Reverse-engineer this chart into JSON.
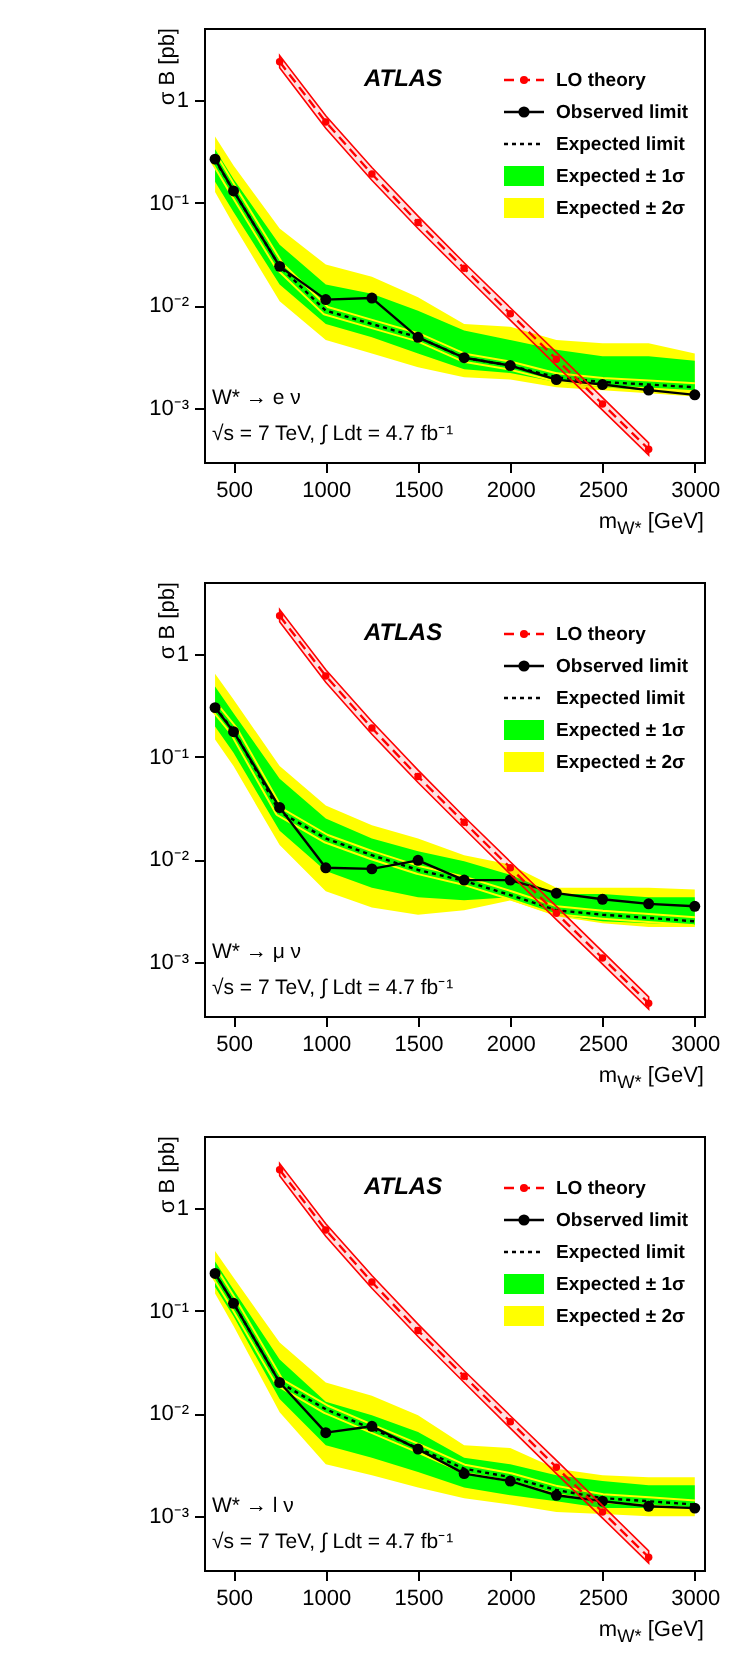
{
  "chart_data": [
    {
      "type": "line",
      "xlabel": "m$_{W*}$ [GeV]",
      "ylabel": "σ B [pb]",
      "log": "y",
      "legend": "top right",
      "grid": false,
      "annotations": [
        "ATLAS",
        "W* → e ν",
        "√s = 7 TeV, ∫ Ldt = 4.7 fb⁻¹"
      ],
      "xlim": [
        340,
        3050
      ],
      "xticks": [
        500,
        1000,
        1500,
        2000,
        2500,
        3000
      ],
      "ylim": [
        0.0003,
        5
      ],
      "yticks": [
        {
          "value": 0.001,
          "label": "10⁻³"
        },
        {
          "value": 0.01,
          "label": "10⁻²"
        },
        {
          "value": 0.1,
          "label": "10⁻¹"
        },
        {
          "value": 1,
          "label": "1"
        }
      ],
      "x": [
        400,
        500,
        750,
        1000,
        1250,
        1500,
        1750,
        2000,
        2250,
        2500,
        2750,
        3000
      ],
      "series": [
        {
          "name": "LO theory",
          "type": "line",
          "color": "#ff0000",
          "line_style": "dashed",
          "marker": "circle",
          "x": [
            750,
            1000,
            1250,
            1500,
            1750,
            2000,
            2250,
            2500,
            2750
          ],
          "values": [
            2.35,
            0.61,
            0.19,
            0.064,
            0.023,
            0.0083,
            0.003,
            0.0011,
            0.0004
          ],
          "lower": [
            2.05,
            0.53,
            0.165,
            0.056,
            0.02,
            0.0072,
            0.0026,
            0.00096,
            0.00035
          ],
          "upper": [
            2.7,
            0.7,
            0.22,
            0.074,
            0.026,
            0.0095,
            0.0035,
            0.00127,
            0.00046
          ]
        },
        {
          "name": "Observed limit",
          "type": "line",
          "color": "#000000",
          "line_style": "solid",
          "marker": "circle",
          "values": [
            0.265,
            0.13,
            0.024,
            0.0114,
            0.0118,
            0.0049,
            0.0031,
            0.0026,
            0.0019,
            0.0017,
            0.0015,
            0.00135
          ]
        },
        {
          "name": "Expected  limit",
          "type": "line",
          "color": "#000000",
          "line_style": "dotted",
          "marker": "none",
          "values": [
            0.26,
            0.13,
            0.024,
            0.0089,
            0.0066,
            0.0049,
            0.0031,
            0.0026,
            0.002,
            0.0018,
            0.0017,
            0.0016
          ]
        },
        {
          "name": "Expected ± 1σ",
          "type": "line",
          "color": "#00ff00",
          "line_style": "solid",
          "marker": "none",
          "values": [
            0.26,
            0.13,
            0.024,
            0.0089,
            0.0066,
            0.0049,
            0.0031,
            0.0026,
            0.002,
            0.0018,
            0.0017,
            0.0016
          ],
          "lower": [
            0.16,
            0.081,
            0.016,
            0.0066,
            0.0049,
            0.0034,
            0.0024,
            0.0022,
            0.0018,
            0.0016,
            0.0015,
            0.0015
          ],
          "upper": [
            0.33,
            0.17,
            0.039,
            0.016,
            0.013,
            0.0089,
            0.0057,
            0.0046,
            0.0037,
            0.0032,
            0.0032,
            0.0029
          ]
        },
        {
          "name": "Expected ± 2σ",
          "type": "line",
          "color": "#ffff00",
          "line_style": "solid",
          "marker": "none",
          "values": [
            0.26,
            0.13,
            0.024,
            0.0089,
            0.0066,
            0.0049,
            0.0031,
            0.0026,
            0.002,
            0.0018,
            0.0017,
            0.0016
          ],
          "lower": [
            0.127,
            0.061,
            0.011,
            0.0046,
            0.0034,
            0.0025,
            0.002,
            0.0019,
            0.0016,
            0.0015,
            0.0014,
            0.0013
          ],
          "upper": [
            0.44,
            0.23,
            0.056,
            0.025,
            0.019,
            0.012,
            0.0066,
            0.0062,
            0.0046,
            0.0043,
            0.0043,
            0.0034
          ]
        }
      ]
    },
    {
      "type": "line",
      "xlabel": "m$_{W*}$ [GeV]",
      "ylabel": "σ B [pb]",
      "log": "y",
      "legend": "top right",
      "grid": false,
      "annotations": [
        "ATLAS",
        "W* → μ ν",
        "√s = 7 TeV, ∫ Ldt = 4.7 fb⁻¹"
      ],
      "xlim": [
        340,
        3050
      ],
      "xticks": [
        500,
        1000,
        1500,
        2000,
        2500,
        3000
      ],
      "ylim": [
        0.0003,
        5
      ],
      "yticks": [
        {
          "value": 0.001,
          "label": "10⁻³"
        },
        {
          "value": 0.01,
          "label": "10⁻²"
        },
        {
          "value": 0.1,
          "label": "10⁻¹"
        },
        1
      ],
      "x": [
        400,
        500,
        750,
        1000,
        1250,
        1500,
        1750,
        2000,
        2250,
        2500,
        2750,
        3000
      ],
      "series": [
        {
          "name": "LO theory",
          "type": "line",
          "color": "#ff0000",
          "line_style": "dashed",
          "marker": "circle",
          "x": [
            750,
            1000,
            1250,
            1500,
            1750,
            2000,
            2250,
            2500,
            2750
          ],
          "values": [
            2.35,
            0.61,
            0.19,
            0.064,
            0.023,
            0.0083,
            0.003,
            0.0011,
            0.0004
          ],
          "lower": [
            2.05,
            0.53,
            0.165,
            0.056,
            0.02,
            0.0072,
            0.0026,
            0.00096,
            0.00035
          ],
          "upper": [
            2.7,
            0.7,
            0.22,
            0.074,
            0.026,
            0.0095,
            0.0035,
            0.00127,
            0.00046
          ]
        },
        {
          "name": "Observed limit",
          "type": "line",
          "color": "#000000",
          "line_style": "solid",
          "marker": "circle",
          "values": [
            0.3,
            0.175,
            0.032,
            0.0083,
            0.0081,
            0.0098,
            0.0063,
            0.0063,
            0.0047,
            0.0041,
            0.0037,
            0.0035
          ]
        },
        {
          "name": "Expected  limit",
          "type": "line",
          "color": "#000000",
          "line_style": "dotted",
          "marker": "none",
          "values": [
            0.3,
            0.18,
            0.029,
            0.016,
            0.011,
            0.0079,
            0.0062,
            0.0045,
            0.0032,
            0.0029,
            0.0027,
            0.0025
          ]
        },
        {
          "name": "Expected ± 1σ",
          "type": "line",
          "color": "#00ff00",
          "line_style": "solid",
          "marker": "none",
          "values": [
            0.3,
            0.18,
            0.029,
            0.016,
            0.011,
            0.0079,
            0.0062,
            0.0045,
            0.0032,
            0.0029,
            0.0027,
            0.0025
          ],
          "lower": [
            0.197,
            0.109,
            0.019,
            0.0077,
            0.0053,
            0.0043,
            0.004,
            0.0043,
            0.0029,
            0.0025,
            0.0024,
            0.0023
          ],
          "upper": [
            0.48,
            0.265,
            0.061,
            0.025,
            0.016,
            0.012,
            0.0096,
            0.0071,
            0.0046,
            0.0046,
            0.0043,
            0.0043
          ]
        },
        {
          "name": "Expected ± 2σ",
          "type": "line",
          "color": "#ffff00",
          "line_style": "solid",
          "marker": "none",
          "values": [
            0.3,
            0.18,
            0.029,
            0.016,
            0.011,
            0.0079,
            0.0062,
            0.0045,
            0.0032,
            0.0029,
            0.0027,
            0.0025
          ],
          "lower": [
            0.147,
            0.081,
            0.0138,
            0.0049,
            0.0034,
            0.0029,
            0.0032,
            0.004,
            0.0028,
            0.0024,
            0.0022,
            0.0022
          ],
          "upper": [
            0.64,
            0.36,
            0.081,
            0.0335,
            0.0215,
            0.016,
            0.011,
            0.0089,
            0.0053,
            0.0053,
            0.0053,
            0.0051
          ]
        }
      ]
    },
    {
      "type": "line",
      "xlabel": "m$_{W*}$ [GeV]",
      "ylabel": "σ B [pb]",
      "log": "y",
      "legend": "top right",
      "grid": false,
      "annotations": [
        "ATLAS",
        "W* → l ν",
        "√s = 7 TeV, ∫ Ldt = 4.7 fb⁻¹"
      ],
      "xlim": [
        340,
        3050
      ],
      "xticks": [
        500,
        1000,
        1500,
        2000,
        2500,
        3000
      ],
      "ylim": [
        0.0003,
        5
      ],
      "yticks": [
        {
          "value": 0.001,
          "label": "10⁻³"
        },
        {
          "value": 0.01,
          "label": "10⁻²"
        },
        {
          "value": 0.1,
          "label": "10⁻¹"
        },
        1
      ],
      "x": [
        400,
        500,
        750,
        1000,
        1250,
        1500,
        1750,
        2000,
        2250,
        2500,
        2750,
        3000
      ],
      "series": [
        {
          "name": "LO theory",
          "type": "line",
          "color": "#ff0000",
          "line_style": "dashed",
          "marker": "circle",
          "x": [
            750,
            1000,
            1250,
            1500,
            1750,
            2000,
            2250,
            2500,
            2750
          ],
          "values": [
            2.35,
            0.61,
            0.19,
            0.064,
            0.023,
            0.0083,
            0.003,
            0.0011,
            0.0004
          ],
          "lower": [
            2.05,
            0.53,
            0.165,
            0.056,
            0.02,
            0.0072,
            0.0026,
            0.00096,
            0.00035
          ],
          "upper": [
            2.7,
            0.7,
            0.22,
            0.074,
            0.026,
            0.0095,
            0.0035,
            0.00127,
            0.00046
          ]
        },
        {
          "name": "Observed limit",
          "type": "line",
          "color": "#000000",
          "line_style": "solid",
          "marker": "circle",
          "values": [
            0.23,
            0.118,
            0.02,
            0.0065,
            0.0075,
            0.0045,
            0.0026,
            0.0022,
            0.0016,
            0.0014,
            0.00125,
            0.0012
          ]
        },
        {
          "name": "Expected  limit",
          "type": "line",
          "color": "#000000",
          "line_style": "dotted",
          "marker": "none",
          "values": [
            0.23,
            0.118,
            0.02,
            0.011,
            0.0071,
            0.0046,
            0.0029,
            0.0024,
            0.0018,
            0.0015,
            0.0014,
            0.0013
          ]
        },
        {
          "name": "Expected ± 1σ",
          "type": "line",
          "color": "#00ff00",
          "line_style": "solid",
          "marker": "none",
          "values": [
            0.23,
            0.118,
            0.02,
            0.011,
            0.0071,
            0.0046,
            0.0029,
            0.0024,
            0.0018,
            0.0015,
            0.0014,
            0.0013
          ],
          "lower": [
            0.17,
            0.088,
            0.0138,
            0.0049,
            0.0037,
            0.0027,
            0.0019,
            0.0016,
            0.0014,
            0.0012,
            0.0012,
            0.0012
          ],
          "upper": [
            0.3,
            0.16,
            0.0335,
            0.013,
            0.0096,
            0.0066,
            0.0037,
            0.0032,
            0.0025,
            0.0022,
            0.002,
            0.002
          ]
        },
        {
          "name": "Expected ± 2σ",
          "type": "line",
          "color": "#ffff00",
          "line_style": "solid",
          "marker": "none",
          "values": [
            0.23,
            0.118,
            0.02,
            0.011,
            0.0071,
            0.0046,
            0.0029,
            0.0024,
            0.0018,
            0.0015,
            0.0014,
            0.0013
          ],
          "lower": [
            0.147,
            0.071,
            0.0103,
            0.0032,
            0.0025,
            0.0019,
            0.0015,
            0.0013,
            0.0011,
            0.00105,
            0.001,
            0.001
          ],
          "upper": [
            0.38,
            0.21,
            0.049,
            0.02,
            0.0149,
            0.0096,
            0.0049,
            0.0046,
            0.0029,
            0.0025,
            0.0024,
            0.0024
          ]
        }
      ]
    }
  ]
}
